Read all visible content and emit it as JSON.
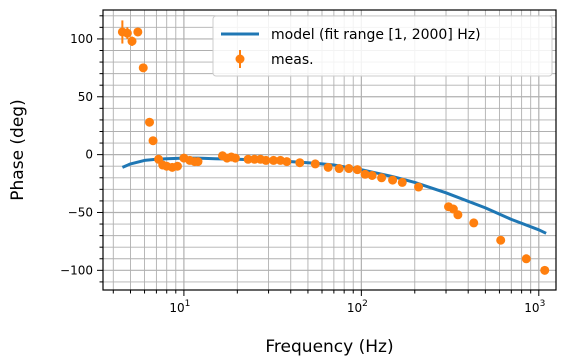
{
  "chart_data": {
    "type": "scatter",
    "title": "",
    "xlabel": "Frequency (Hz)",
    "ylabel": "Phase (deg)",
    "xscale": "log",
    "xlim": [
      3.5,
      1250
    ],
    "ylim": [
      -117,
      125
    ],
    "x_tick_exponents": [
      "1",
      "2",
      "3"
    ],
    "x_tick_base": "10",
    "y_ticks": [
      100,
      50,
      0,
      -50,
      -100
    ],
    "grid": "major and minor",
    "legend_position": "top-right",
    "colors": {
      "model": "#1f77b4",
      "meas": "#ff7f0e",
      "grid": "#b0b0b0"
    },
    "series": [
      {
        "name": "model (fit range [1, 2000] Hz)",
        "kind": "line",
        "x": [
          4.5,
          5,
          6,
          7,
          8,
          10,
          12,
          15,
          20,
          30,
          40,
          50,
          60,
          70,
          80,
          100,
          150,
          200,
          300,
          500,
          700,
          1000,
          1100
        ],
        "y": [
          -11,
          -8,
          -5,
          -4,
          -3.5,
          -3,
          -3,
          -3.5,
          -4,
          -5,
          -6,
          -7,
          -8,
          -9,
          -10.5,
          -13,
          -19,
          -24,
          -33,
          -46,
          -56,
          -65,
          -68
        ]
      },
      {
        "name": "meas.",
        "kind": "errorbar",
        "x": [
          4.5,
          4.8,
          5.1,
          5.5,
          5.9,
          6.4,
          6.7,
          7.2,
          7.6,
          8.0,
          8.6,
          9.2,
          10.0,
          10.8,
          11.5,
          12.0,
          16.5,
          17.5,
          18.5,
          19.5,
          23,
          25,
          27,
          29,
          32,
          35,
          38,
          45,
          55,
          65,
          75,
          85,
          95,
          105,
          115,
          130,
          150,
          170,
          210,
          310,
          330,
          350,
          430,
          610,
          850,
          1080
        ],
        "y": [
          106,
          105,
          98,
          106,
          75,
          28,
          12,
          -4,
          -9,
          -10,
          -11,
          -10,
          -3,
          -5,
          -6,
          -6,
          -1,
          -3,
          -2,
          -3,
          -4,
          -4,
          -4,
          -5,
          -5,
          -5,
          -6,
          -7,
          -8,
          -11,
          -12,
          -12,
          -13,
          -17,
          -18,
          -20,
          -22,
          -24,
          -28,
          -45,
          -47,
          -52,
          -59,
          -74,
          -90,
          -100
        ],
        "yerr": [
          10,
          5,
          4,
          2,
          2,
          2,
          2,
          2,
          2,
          1.5,
          1.5,
          1.5,
          1.5,
          1.5,
          1.5,
          1.5,
          1.5,
          1.5,
          1.5,
          1.5,
          1.5,
          1.5,
          1.5,
          1.5,
          1.5,
          1.5,
          1.5,
          1.5,
          1.5,
          1.5,
          1.5,
          1.5,
          1.5,
          1.5,
          1.5,
          1.5,
          1.5,
          1.5,
          1.5,
          2,
          2,
          2,
          2,
          2,
          2,
          2
        ]
      }
    ]
  }
}
